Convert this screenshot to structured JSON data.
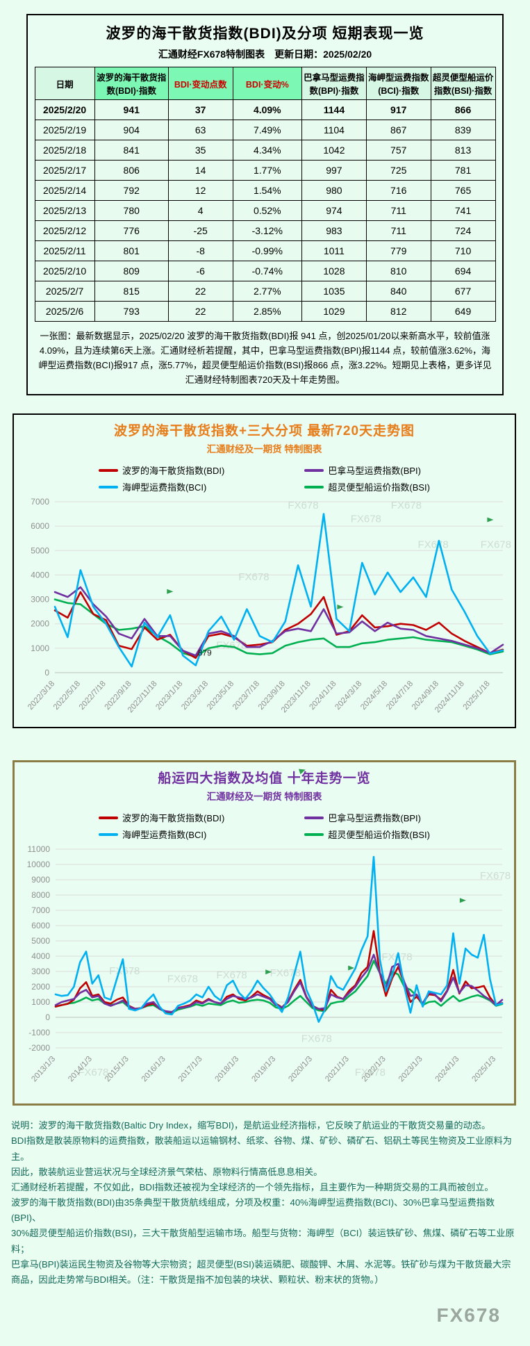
{
  "colors": {
    "bdi_red": "#c00000",
    "bpi_purple": "#7030a0",
    "bci_cyan": "#00b0f0",
    "bsi_green": "#00b050",
    "accent_orange": "#e77c1a",
    "accent_purple": "#7030a0",
    "header_green": "#7df8b4",
    "watermark_gray": "#b9c8bd",
    "logo_gray": "#9aa69e"
  },
  "table_panel": {
    "title": "波罗的海干散货指数(BDI)及分项 短期表现一览",
    "subtitle": "汇通财经FX678特制图表　更新日期：2025/02/20",
    "note": "一张图：最新数据显示，2025/02/20 波罗的海干散货指数(BDI)报 941 点，创2025/01/20以来新高水平，较前值涨4.09%，且为连续第6天上涨。汇通财经析若提醒，其中，巴拿马型运费指数(BPI)报1144 点，较前值涨3.62%，海岬型运费指数(BCI)报917 点，涨5.77%，超灵便型船运价指数(BSI)报866 点，涨3.22%。短期见上表格，更多详见汇通财经特制图表720天及十年走势图。"
  },
  "table": {
    "columns": [
      {
        "label": "日期",
        "style": "mint"
      },
      {
        "label": "波罗的海干散货指数(BDI)·指数",
        "style": "green"
      },
      {
        "label": "BDI·变动点数",
        "style": "green-red"
      },
      {
        "label": "BDI·变动%",
        "style": "green-red"
      },
      {
        "label": "巴拿马型运费指数(BPI)·指数",
        "style": "mint"
      },
      {
        "label": "海岬型运费指数(BCI)·指数",
        "style": "mint"
      },
      {
        "label": "超灵便型船运价指数(BSI)·指数",
        "style": "mint"
      }
    ],
    "rows": [
      {
        "bold": true,
        "cells": [
          "2025/2/20",
          "941",
          "37",
          "4.09%",
          "1144",
          "917",
          "866"
        ]
      },
      {
        "bold": false,
        "cells": [
          "2025/2/19",
          "904",
          "63",
          "7.49%",
          "1104",
          "867",
          "839"
        ]
      },
      {
        "bold": false,
        "cells": [
          "2025/2/18",
          "841",
          "35",
          "4.34%",
          "1042",
          "757",
          "813"
        ]
      },
      {
        "bold": false,
        "cells": [
          "2025/2/17",
          "806",
          "14",
          "1.77%",
          "997",
          "725",
          "781"
        ]
      },
      {
        "bold": false,
        "cells": [
          "2025/2/14",
          "792",
          "12",
          "1.54%",
          "980",
          "716",
          "765"
        ]
      },
      {
        "bold": false,
        "cells": [
          "2025/2/13",
          "780",
          "4",
          "0.52%",
          "974",
          "711",
          "741"
        ]
      },
      {
        "bold": false,
        "cells": [
          "2025/2/12",
          "776",
          "-25",
          "-3.12%",
          "983",
          "711",
          "724"
        ]
      },
      {
        "bold": false,
        "cells": [
          "2025/2/11",
          "801",
          "-8",
          "-0.99%",
          "1011",
          "779",
          "710"
        ]
      },
      {
        "bold": false,
        "cells": [
          "2025/2/10",
          "809",
          "-6",
          "-0.74%",
          "1028",
          "810",
          "694"
        ]
      },
      {
        "bold": false,
        "cells": [
          "2025/2/7",
          "815",
          "22",
          "2.77%",
          "1035",
          "840",
          "677"
        ]
      },
      {
        "bold": false,
        "cells": [
          "2025/2/6",
          "793",
          "22",
          "2.85%",
          "1029",
          "812",
          "649"
        ]
      }
    ]
  },
  "chart_data": [
    {
      "id": "bdi-720day-trend",
      "type": "line",
      "title": "波罗的海干散货指数+三大分项  最新720天走势图",
      "subtitle": "汇通财经及一期货 特制图表",
      "legend_position": "top",
      "grid": "horizontal",
      "ylim": [
        0,
        7000
      ],
      "ytick_step": 1000,
      "x_start": 0,
      "x_step": 1,
      "x_tick_start": 0,
      "x_tick_step": 2,
      "x_tick_labels": [
        "2022/3/18",
        "2022/5/18",
        "2022/7/18",
        "2022/9/18",
        "2022/11/18",
        "2023/1/18",
        "2023/3/18",
        "2023/5/18",
        "2023/7/18",
        "2023/9/18",
        "2023/11/18",
        "2024/1/18",
        "2024/3/18",
        "2024/5/18",
        "2024/7/18",
        "2024/9/18",
        "2024/11/18",
        "2025/1/18"
      ],
      "series": [
        {
          "name": "波罗的海干散货指数(BDI)",
          "color": "#c00000",
          "values": [
            2550,
            2250,
            3300,
            2400,
            2150,
            1100,
            965,
            1850,
            1350,
            1550,
            900,
            600,
            1500,
            1600,
            1450,
            1100,
            1150,
            1250,
            1750,
            2000,
            2400,
            3100,
            1550,
            1700,
            2350,
            1850,
            1900,
            2000,
            1950,
            1750,
            2050,
            1600,
            1300,
            1050,
            800,
            941
          ]
        },
        {
          "name": "巴拿马型运费指数(BPI)",
          "color": "#7030a0",
          "values": [
            3300,
            3100,
            3500,
            2800,
            2300,
            1600,
            1400,
            2200,
            1500,
            1500,
            900,
            700,
            1600,
            1700,
            1500,
            1050,
            1050,
            1300,
            1700,
            1800,
            1700,
            2600,
            1600,
            1650,
            2100,
            1700,
            2050,
            1800,
            1750,
            1500,
            1400,
            1300,
            1150,
            1000,
            800,
            1144
          ]
        },
        {
          "name": "海岬型运费指数(BCI)",
          "color": "#00b0f0",
          "values": [
            2700,
            1450,
            4200,
            2700,
            2000,
            1050,
            250,
            2050,
            1450,
            2350,
            700,
            300,
            1700,
            2300,
            1350,
            2600,
            1500,
            1250,
            2100,
            4400,
            2700,
            6500,
            2200,
            1700,
            4500,
            3200,
            4100,
            3300,
            3900,
            3100,
            5400,
            3400,
            2500,
            1500,
            780,
            917
          ]
        },
        {
          "name": "超灵便型船运价指数(BSI)",
          "color": "#00b050",
          "values": [
            3000,
            2850,
            2800,
            2400,
            2000,
            1750,
            1800,
            1900,
            1500,
            1200,
            800,
            650,
            1000,
            1100,
            1050,
            800,
            750,
            800,
            1100,
            1250,
            1350,
            1400,
            1050,
            1050,
            1200,
            1250,
            1350,
            1400,
            1450,
            1350,
            1300,
            1250,
            1100,
            950,
            750,
            866
          ]
        }
      ],
      "annotations": [
        {
          "x": 11,
          "y": 810,
          "text": "879"
        }
      ],
      "watermarks": [
        {
          "fx": 0.52,
          "fy": 0.04
        },
        {
          "fx": 0.75,
          "fy": 0.04
        },
        {
          "fx": 0.66,
          "fy": 0.12
        },
        {
          "fx": 0.81,
          "fy": 0.27
        },
        {
          "fx": 0.95,
          "fy": 0.27
        },
        {
          "fx": 0.41,
          "fy": 0.46
        },
        {
          "fx": 0.36,
          "fy": 0.86
        }
      ],
      "flags": [
        {
          "fx": 0.25,
          "fy": 0.54
        },
        {
          "fx": 0.63,
          "fy": 0.63
        },
        {
          "fx": 0.965,
          "fy": 0.12
        }
      ]
    },
    {
      "id": "four-indices-10year-trend",
      "type": "line",
      "title": "船运四大指数及均值 十年走势一览",
      "subtitle": "汇通财经及一期货 特制图表",
      "legend_position": "top",
      "grid": "horizontal",
      "ylim": [
        -2000,
        11000
      ],
      "ytick_step": 1000,
      "x_start": 2013.0,
      "x_step": 0.16667,
      "x_tick_start": 2013,
      "x_tick_step": 1,
      "x_tick_labels": [
        "2013/1/3",
        "2014/1/3",
        "2015/1/3",
        "2016/1/3",
        "2017/1/3",
        "2018/1/3",
        "2019/1/3",
        "2020/1/3",
        "2021/1/3",
        "2022/1/3",
        "2023/1/3",
        "2024/1/3",
        "2025/1/3"
      ],
      "series": [
        {
          "name": "波罗的海干散货指数(BDI)",
          "color": "#c00000",
          "values": [
            700,
            800,
            880,
            1150,
            1900,
            2300,
            1400,
            1500,
            1000,
            900,
            1150,
            1300,
            750,
            560,
            600,
            800,
            900,
            580,
            380,
            330,
            620,
            700,
            800,
            1100,
            950,
            1200,
            1000,
            900,
            1350,
            1500,
            1200,
            1100,
            1350,
            1700,
            1450,
            1250,
            900,
            650,
            1050,
            1800,
            2450,
            1350,
            750,
            550,
            450,
            1800,
            1350,
            1200,
            1750,
            2100,
            2900,
            3300,
            5650,
            2900,
            1400,
            2550,
            3300,
            2200,
            1000,
            1350,
            900,
            1500,
            1450,
            1150,
            1750,
            3100,
            1550,
            2350,
            1900,
            1950,
            2050,
            1300,
            800,
            941
          ]
        },
        {
          "name": "巴拿马型运费指数(BPI)",
          "color": "#7030a0",
          "values": [
            800,
            1000,
            1100,
            1200,
            1600,
            1800,
            1300,
            1400,
            900,
            750,
            900,
            1100,
            700,
            550,
            600,
            900,
            1000,
            550,
            400,
            350,
            600,
            650,
            750,
            1000,
            900,
            1150,
            1000,
            900,
            1200,
            1400,
            1300,
            1200,
            1300,
            1500,
            1350,
            1200,
            800,
            650,
            1000,
            1700,
            2300,
            1300,
            700,
            550,
            600,
            1500,
            1300,
            1200,
            1600,
            2000,
            2600,
            3100,
            4100,
            2900,
            1900,
            3300,
            3500,
            2300,
            1400,
            1500,
            900,
            1600,
            1500,
            1050,
            1700,
            2600,
            1600,
            2100,
            2050,
            1750,
            1400,
            1150,
            800,
            1144
          ]
        },
        {
          "name": "海岬型运费指数(BCI)",
          "color": "#00b0f0",
          "values": [
            1500,
            1400,
            1450,
            2000,
            3600,
            4300,
            2200,
            2750,
            1300,
            1150,
            2500,
            3800,
            550,
            450,
            600,
            1100,
            1500,
            700,
            250,
            180,
            750,
            900,
            1100,
            1500,
            1300,
            2000,
            1400,
            1100,
            2100,
            2400,
            1600,
            1200,
            1700,
            2400,
            1900,
            1500,
            900,
            350,
            1300,
            2800,
            4300,
            1800,
            900,
            -300,
            500,
            2700,
            2000,
            1800,
            2500,
            3200,
            4400,
            5300,
            10500,
            3800,
            1700,
            2700,
            4200,
            2000,
            300,
            2100,
            700,
            1700,
            1600,
            1500,
            2100,
            5500,
            2200,
            4500,
            4100,
            3900,
            5400,
            2500,
            780,
            917
          ]
        },
        {
          "name": "超灵便型船运价指数(BSI)",
          "color": "#00b050",
          "values": [
            700,
            800,
            900,
            950,
            1100,
            1300,
            1100,
            1200,
            900,
            800,
            900,
            1000,
            650,
            550,
            600,
            750,
            800,
            550,
            350,
            300,
            500,
            600,
            700,
            850,
            750,
            900,
            850,
            800,
            1000,
            1100,
            950,
            1000,
            1100,
            1150,
            1100,
            950,
            650,
            550,
            750,
            1100,
            1400,
            1000,
            600,
            450,
            400,
            900,
            1000,
            1050,
            1400,
            1700,
            2200,
            2700,
            3700,
            2900,
            2200,
            3000,
            2800,
            2000,
            1800,
            1400,
            800,
            1000,
            1050,
            750,
            1100,
            1400,
            1050,
            1200,
            1350,
            1450,
            1300,
            1100,
            750,
            866
          ]
        }
      ],
      "annotations": [],
      "watermarks": [
        {
          "fx": 0.12,
          "fy": 0.63
        },
        {
          "fx": 0.25,
          "fy": 0.67
        },
        {
          "fx": 0.36,
          "fy": 0.65
        },
        {
          "fx": 0.48,
          "fy": 0.64
        },
        {
          "fx": 0.73,
          "fy": 0.56
        },
        {
          "fx": 0.55,
          "fy": 0.97
        },
        {
          "fx": 0.05,
          "fy": 1.14
        },
        {
          "fx": 0.67,
          "fy": 1.14
        },
        {
          "fx": 0.95,
          "fy": 0.15
        }
      ],
      "flags": [
        {
          "fx": 0.47,
          "fy": 0.63
        },
        {
          "fx": 0.655,
          "fy": 0.61
        },
        {
          "fx": 0.905,
          "fy": 0.27
        }
      ]
    }
  ],
  "description_lines": [
    "说明：波罗的海干散货指数(Baltic Dry Index，缩写BDI)，是航运业经济指标，它反映了航运业的干散货交易量的动态。",
    "BDI指数是散装原物料的运费指数，散装船运以运输钢材、纸浆、谷物、煤、矿砂、磷矿石、铝矾土等民生物资及工业原料为主。",
    "因此，散装航运业营运状况与全球经济景气荣枯、原物料行情高低息息相关。",
    "汇通财经析若提醒，不仅如此，BDI指数还被视为全球经济的一个领先指标，且主要作为一种期货交易的工具而被创立。",
    "波罗的海干散货指数(BDI)由35条典型干散货航线组成，分项及权重：40%海岬型运费指数(BCI)、30%巴拿马型运费指数(BPI)、",
    "30%超灵便型船运价指数(BSI)，三大干散货船型运输市场。船型与货物：海岬型（BCI）装运铁矿砂、焦煤、磷矿石等工业原料；",
    "巴拿马(BPI)装运民生物资及谷物等大宗物资；超灵便型(BSI)装运磷肥、碳酸钾、木屑、水泥等。铁矿砂与煤为干散货最大宗",
    "商品，因此走势常与BDI相关。（注：干散货是指不加包装的块状、颗粒状、粉末状的货物。）"
  ],
  "logo_text": "FX678",
  "watermark_text": "FX678"
}
